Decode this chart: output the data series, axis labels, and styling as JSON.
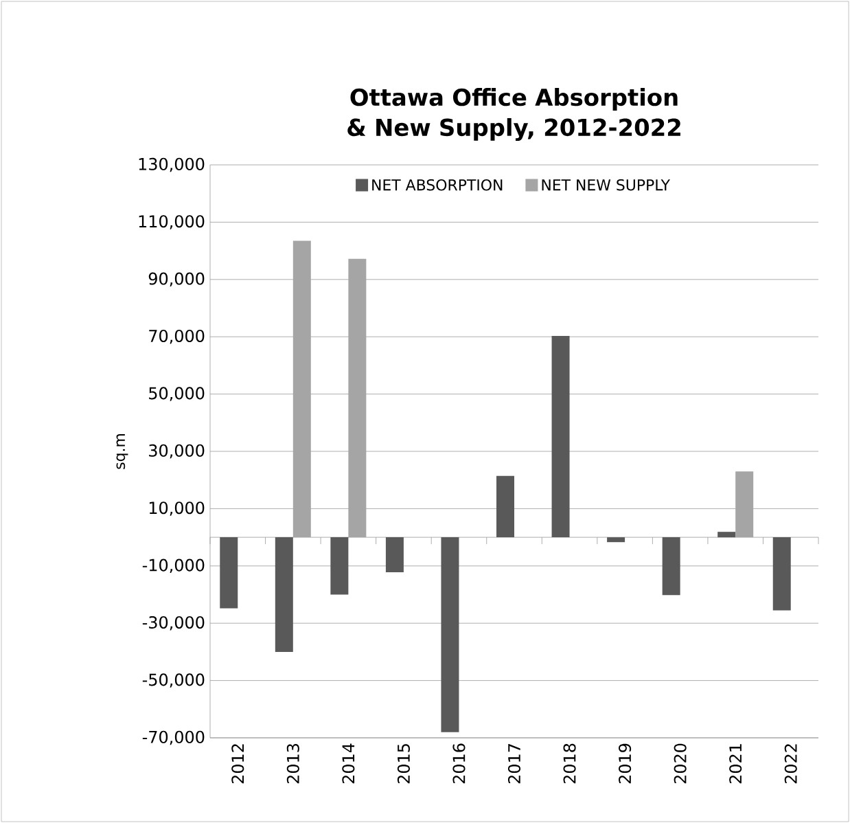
{
  "chart_data": {
    "type": "bar",
    "title": "Ottawa Office Absorption & New Supply, 2012-2022",
    "ylabel": "sq.m",
    "categories": [
      "2012",
      "2013",
      "2014",
      "2015",
      "2016",
      "2017",
      "2018",
      "2019",
      "2020",
      "2021",
      "2022"
    ],
    "series": [
      {
        "name": "NET ABSORPTION",
        "color": "#595959",
        "values": [
          -24800,
          -40000,
          -20000,
          -12200,
          -68000,
          21400,
          70300,
          -1700,
          -20200,
          1900,
          -25500
        ]
      },
      {
        "name": "NET NEW SUPPLY",
        "color": "#a5a5a5",
        "values": [
          null,
          103500,
          97200,
          null,
          null,
          null,
          null,
          null,
          null,
          23000,
          null
        ]
      }
    ],
    "ylim": [
      -70000,
      130000
    ],
    "yticks": [
      {
        "value": -70000,
        "label": "-70,000"
      },
      {
        "value": -50000,
        "label": "-50,000"
      },
      {
        "value": -30000,
        "label": "-30,000"
      },
      {
        "value": -10000,
        "label": "-10,000"
      },
      {
        "value": 10000,
        "label": "10,000"
      },
      {
        "value": 30000,
        "label": "30,000"
      },
      {
        "value": 50000,
        "label": "50,000"
      },
      {
        "value": 70000,
        "label": "70,000"
      },
      {
        "value": 90000,
        "label": "90,000"
      },
      {
        "value": 110000,
        "label": "110,000"
      },
      {
        "value": 130000,
        "label": "130,000"
      }
    ],
    "grid": "y",
    "legend": "top"
  }
}
